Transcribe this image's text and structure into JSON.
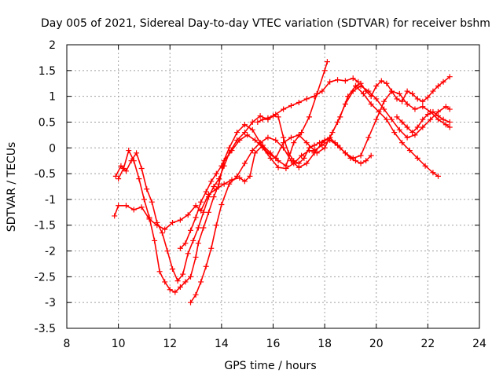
{
  "chart_data": {
    "type": "scatter",
    "title": "Day 005 of 2021, Sidereal Day-to-day VTEC variation (SDTVAR) for receiver bshm",
    "xlabel": "GPS time / hours",
    "ylabel": "SDTVAR / TECUs",
    "xlim": [
      8,
      24
    ],
    "ylim": [
      -3.5,
      2
    ],
    "x_ticks": [
      "8",
      "10",
      "12",
      "14",
      "16",
      "18",
      "20",
      "22",
      "24"
    ],
    "y_ticks": [
      "-3.5",
      "-3",
      "-2.5",
      "-2",
      "-1.5",
      "-1",
      "-0.5",
      "0",
      "0.5",
      "1",
      "1.5",
      "2"
    ],
    "grid": true,
    "legend": "none",
    "color": "#ff0000",
    "marker": "plus",
    "series": [
      {
        "x": [
          9.85,
          10.0,
          10.3,
          10.6,
          10.9,
          11.2,
          11.5,
          11.8,
          12.1,
          12.4,
          12.7,
          13.0,
          13.2,
          13.5,
          13.8,
          14.1,
          14.4,
          14.7,
          14.9,
          15.1,
          15.3,
          15.6,
          15.9,
          16.2,
          16.5,
          16.8,
          17.1,
          17.4,
          17.7,
          18.0,
          18.1
        ],
        "y": [
          -1.32,
          -1.12,
          -1.12,
          -1.2,
          -1.15,
          -1.38,
          -1.5,
          -1.58,
          -1.45,
          -1.4,
          -1.3,
          -1.12,
          -1.22,
          -0.9,
          -0.8,
          -0.7,
          -0.62,
          -0.58,
          -0.65,
          -0.55,
          -0.1,
          0.05,
          -0.1,
          -0.25,
          -0.35,
          0.1,
          0.3,
          0.6,
          1.05,
          1.5,
          1.67
        ]
      },
      {
        "x": [
          9.9,
          10.1,
          10.3,
          10.5,
          10.7,
          10.9,
          11.1,
          11.3,
          11.5,
          11.7,
          11.9,
          12.1,
          12.3,
          12.5,
          12.7,
          12.9,
          13.1,
          13.3,
          13.5,
          13.7,
          13.9,
          14.1,
          14.3,
          14.6,
          14.9,
          15.2,
          15.5,
          15.8,
          16.1,
          16.4,
          16.7,
          17.0,
          17.3,
          17.6,
          17.9,
          18.2,
          18.5,
          18.8,
          19.1,
          19.3
        ],
        "y": [
          -0.55,
          -0.35,
          -0.45,
          -0.25,
          -0.1,
          -0.4,
          -0.8,
          -1.05,
          -1.45,
          -1.65,
          -2.0,
          -2.35,
          -2.58,
          -2.45,
          -2.05,
          -1.8,
          -1.55,
          -1.25,
          -0.95,
          -0.75,
          -0.6,
          -0.35,
          -0.1,
          0.15,
          0.3,
          0.5,
          0.62,
          0.55,
          0.65,
          0.75,
          0.82,
          0.88,
          0.95,
          1.0,
          1.1,
          1.28,
          1.32,
          1.3,
          1.35,
          1.28
        ]
      },
      {
        "x": [
          10.0,
          10.2,
          10.4,
          10.6,
          10.8,
          11.0,
          11.2,
          11.4,
          11.6,
          11.8,
          12.0,
          12.2,
          12.4,
          12.6,
          12.8,
          13.0,
          13.1,
          13.3,
          13.5,
          13.7,
          13.9,
          14.1,
          14.4,
          14.7,
          15.0,
          15.3,
          15.6,
          15.9,
          16.2,
          16.5,
          16.8,
          17.1,
          17.4,
          17.7,
          18.0,
          18.3,
          18.6,
          18.9,
          19.2,
          19.5,
          19.8,
          20.1,
          20.4,
          20.7,
          21.0,
          21.3,
          21.6,
          21.9,
          22.2,
          22.4
        ],
        "y": [
          -0.6,
          -0.4,
          -0.05,
          -0.25,
          -0.6,
          -1.0,
          -1.35,
          -1.8,
          -2.4,
          -2.6,
          -2.75,
          -2.8,
          -2.7,
          -2.6,
          -2.5,
          -2.12,
          -1.85,
          -1.55,
          -1.25,
          -0.95,
          -0.7,
          -0.25,
          -0.05,
          0.15,
          0.25,
          0.15,
          0.0,
          -0.2,
          -0.38,
          -0.4,
          -0.3,
          -0.15,
          -0.05,
          -0.1,
          0.0,
          0.3,
          0.6,
          1.0,
          1.2,
          1.05,
          0.85,
          0.7,
          0.55,
          0.3,
          0.1,
          -0.05,
          -0.2,
          -0.35,
          -0.48,
          -0.55
        ]
      },
      {
        "x": [
          12.8,
          13.0,
          13.2,
          13.4,
          13.6,
          13.8,
          14.0,
          14.3,
          14.6,
          14.9,
          15.2,
          15.5,
          15.8,
          16.1,
          16.4,
          16.7,
          17.0,
          17.3,
          17.6,
          17.9,
          18.2,
          18.5,
          18.8,
          19.1,
          19.4,
          19.7,
          20.0,
          20.3,
          20.6,
          20.9,
          21.2,
          21.5,
          21.8,
          22.1,
          22.4,
          22.7,
          22.85
        ],
        "y": [
          -3.0,
          -2.85,
          -2.6,
          -2.3,
          -1.95,
          -1.5,
          -1.1,
          -0.7,
          -0.55,
          -0.3,
          -0.05,
          0.1,
          0.2,
          0.15,
          0.0,
          -0.25,
          -0.38,
          -0.3,
          -0.1,
          0.1,
          0.2,
          0.5,
          0.85,
          1.1,
          1.2,
          1.1,
          0.95,
          0.75,
          0.55,
          0.35,
          0.2,
          0.25,
          0.4,
          0.55,
          0.7,
          0.8,
          0.75
        ]
      },
      {
        "x": [
          12.4,
          12.6,
          12.8,
          13.0,
          13.2,
          13.4,
          13.6,
          13.8,
          14.0,
          14.3,
          14.6,
          14.9,
          15.2,
          15.5,
          15.8,
          16.1,
          16.4,
          16.7,
          17.0,
          17.3,
          17.6,
          17.9,
          18.2,
          18.5,
          18.8,
          19.1,
          19.4,
          19.7,
          20.0,
          20.3,
          20.6,
          20.9,
          21.2,
          21.5,
          21.8,
          22.1,
          22.4,
          22.7,
          22.85
        ],
        "y": [
          -1.95,
          -1.85,
          -1.6,
          -1.35,
          -1.05,
          -0.85,
          -0.65,
          -0.5,
          -0.35,
          0.0,
          0.3,
          0.45,
          0.35,
          0.1,
          -0.1,
          -0.2,
          0.1,
          0.2,
          0.25,
          0.1,
          -0.05,
          0.05,
          0.15,
          0.05,
          -0.1,
          -0.2,
          -0.15,
          0.2,
          0.55,
          0.9,
          1.1,
          1.05,
          0.85,
          0.75,
          0.8,
          0.7,
          0.55,
          0.45,
          0.4
        ]
      },
      {
        "x": [
          15.4,
          15.6,
          15.8,
          16.0,
          16.2,
          16.4,
          16.6,
          16.8,
          17.0,
          17.2,
          17.4,
          17.6,
          17.8,
          18.0,
          18.2,
          18.4,
          18.6,
          18.8,
          19.0,
          19.2,
          19.4,
          19.6,
          19.8
        ],
        "y": [
          0.5,
          0.55,
          0.58,
          0.62,
          0.6,
          0.2,
          -0.1,
          -0.25,
          -0.3,
          -0.2,
          0.0,
          0.05,
          0.1,
          0.15,
          0.2,
          0.1,
          0.0,
          -0.1,
          -0.2,
          -0.25,
          -0.3,
          -0.25,
          -0.15
        ]
      },
      {
        "x": [
          19.2,
          19.4,
          19.6,
          19.8,
          20.0,
          20.2,
          20.4,
          20.6,
          20.8,
          21.0,
          21.2,
          21.4,
          21.6,
          21.8,
          22.0,
          22.2,
          22.4,
          22.6,
          22.85
        ],
        "y": [
          1.2,
          1.25,
          1.1,
          1.0,
          1.2,
          1.3,
          1.25,
          1.1,
          0.95,
          0.9,
          1.1,
          1.05,
          0.95,
          0.9,
          0.98,
          1.1,
          1.2,
          1.28,
          1.38
        ]
      },
      {
        "x": [
          20.8,
          21.0,
          21.2,
          21.4,
          21.6,
          21.8,
          22.0,
          22.2,
          22.4,
          22.6,
          22.85
        ],
        "y": [
          0.6,
          0.5,
          0.4,
          0.3,
          0.4,
          0.55,
          0.65,
          0.7,
          0.62,
          0.55,
          0.5
        ]
      }
    ]
  }
}
